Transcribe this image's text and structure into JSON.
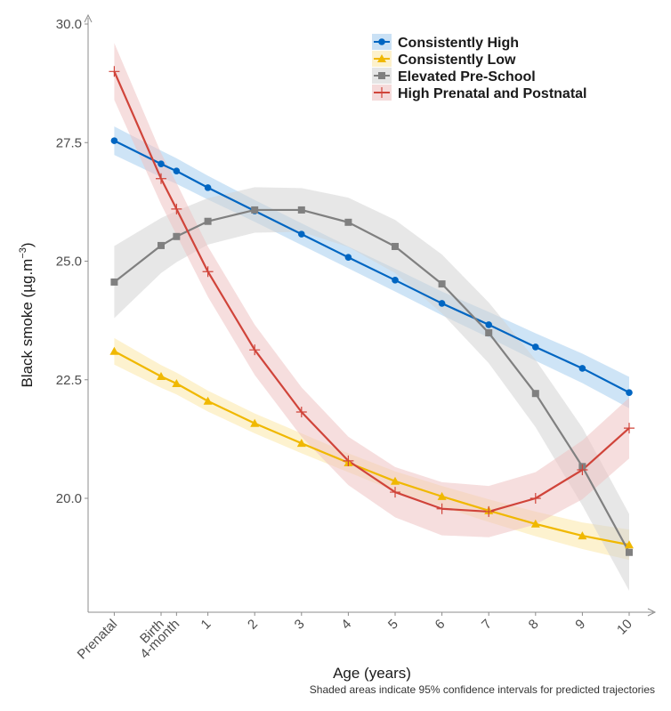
{
  "chart_data": {
    "type": "line",
    "title": "",
    "xlabel": "Age (years)",
    "ylabel": "Black smoke (µg.m",
    "ylabel_superscript": "−3",
    "ylabel_suffix": ")",
    "caption": "Shaded areas indicate 95% confidence intervals for predicted trajectories",
    "ylim": [
      17.6,
      30.0
    ],
    "yticks": [
      20.0,
      22.5,
      25.0,
      27.5,
      30.0
    ],
    "ytick_labels": [
      "20.0",
      "22.5",
      "25.0",
      "27.5",
      "30.0"
    ],
    "x_positions": [
      -1,
      0,
      0.33,
      1,
      2,
      3,
      4,
      5,
      6,
      7,
      8,
      9,
      10
    ],
    "x_labels": [
      "Prenatal",
      "Birth",
      "4-month",
      "1",
      "2",
      "3",
      "4",
      "5",
      "6",
      "7",
      "8",
      "9",
      "10"
    ],
    "xlim": [
      -1.55,
      10.55
    ],
    "grid": false,
    "legend_position": "top-right",
    "series": [
      {
        "name": "Consistently High",
        "color": "#0066C2",
        "band_color": "#A6CDEE",
        "marker": "circle",
        "values": [
          27.54,
          27.05,
          26.9,
          26.55,
          26.06,
          25.57,
          25.08,
          24.6,
          24.11,
          23.66,
          23.19,
          22.74,
          22.23
        ],
        "lower": [
          27.24,
          26.77,
          26.63,
          26.3,
          25.83,
          25.34,
          24.85,
          24.36,
          23.86,
          23.39,
          22.9,
          22.43,
          21.9
        ],
        "upper": [
          27.84,
          27.33,
          27.17,
          26.8,
          26.29,
          25.8,
          25.31,
          24.84,
          24.36,
          23.93,
          23.48,
          23.05,
          22.56
        ]
      },
      {
        "name": "Consistently Low",
        "color": "#F0B800",
        "band_color": "#FBE7A8",
        "marker": "triangle",
        "values": [
          23.1,
          22.57,
          22.42,
          22.05,
          21.58,
          21.16,
          20.75,
          20.36,
          20.04,
          19.74,
          19.46,
          19.21,
          19.02
        ],
        "lower": [
          22.82,
          22.33,
          22.19,
          21.83,
          21.37,
          20.95,
          20.55,
          20.15,
          19.82,
          19.5,
          19.2,
          18.93,
          18.7
        ],
        "upper": [
          23.38,
          22.81,
          22.65,
          22.27,
          21.79,
          21.37,
          20.95,
          20.57,
          20.26,
          19.98,
          19.72,
          19.49,
          19.34
        ]
      },
      {
        "name": "Elevated Pre-School",
        "color": "#808080",
        "band_color": "#D3D3D3",
        "marker": "square",
        "values": [
          24.56,
          25.33,
          25.52,
          25.84,
          26.08,
          26.08,
          25.82,
          25.31,
          24.52,
          23.49,
          22.21,
          20.67,
          18.86
        ],
        "lower": [
          23.8,
          24.75,
          24.98,
          25.35,
          25.6,
          25.62,
          25.3,
          24.75,
          23.9,
          22.85,
          21.5,
          19.85,
          18.05
        ],
        "upper": [
          25.32,
          25.91,
          26.06,
          26.33,
          26.56,
          26.54,
          26.34,
          25.87,
          25.14,
          24.13,
          22.92,
          21.49,
          19.67
        ]
      },
      {
        "name": "High Prenatal and Postnatal",
        "color": "#D0443A",
        "band_color": "#EFC2C2",
        "marker": "plus",
        "values": [
          29.0,
          26.74,
          26.1,
          24.78,
          23.13,
          21.82,
          20.79,
          20.13,
          19.78,
          19.72,
          20.0,
          20.6,
          21.48
        ],
        "lower": [
          28.4,
          26.2,
          25.55,
          24.25,
          22.6,
          21.3,
          20.28,
          19.6,
          19.22,
          19.18,
          19.45,
          19.98,
          20.84
        ],
        "upper": [
          29.6,
          27.28,
          26.65,
          25.31,
          23.66,
          22.34,
          21.3,
          20.66,
          20.34,
          20.26,
          20.55,
          21.22,
          22.12
        ]
      }
    ]
  }
}
